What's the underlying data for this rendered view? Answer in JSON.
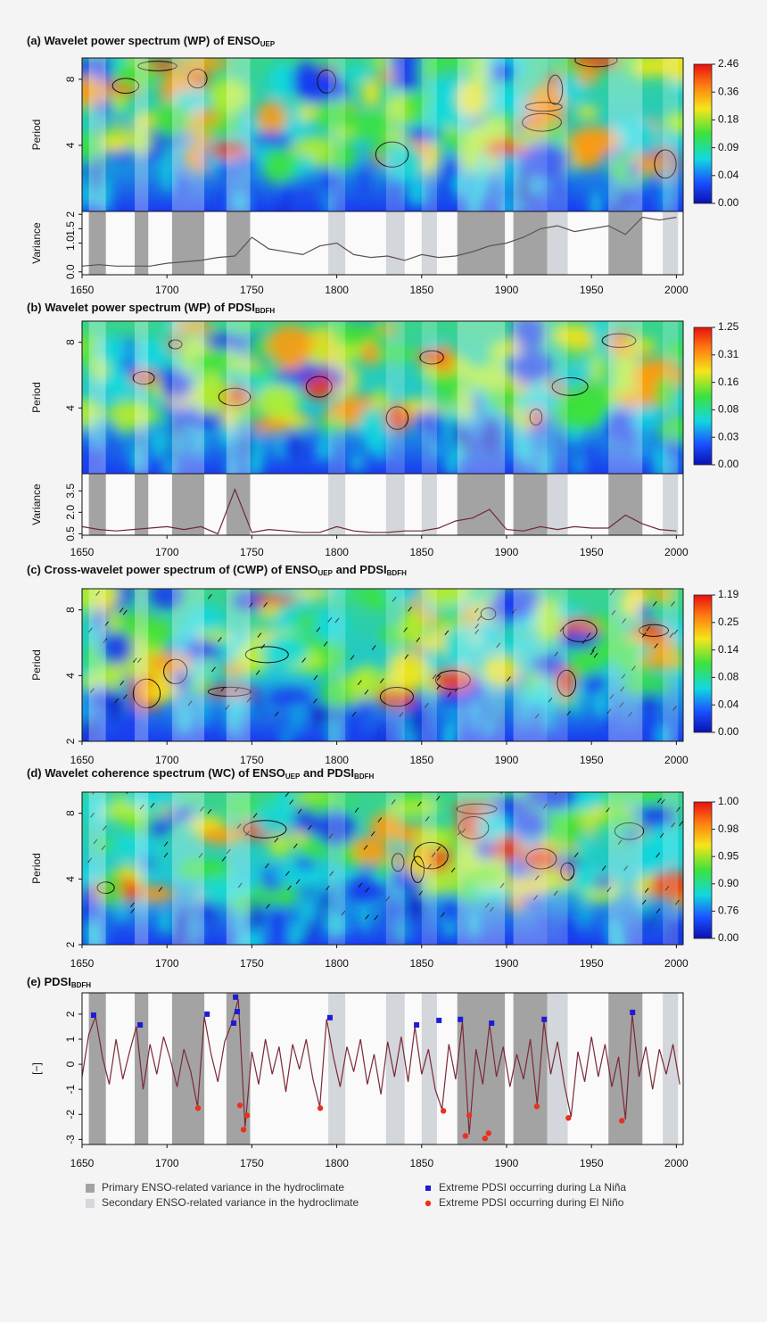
{
  "shading": {
    "primary": {
      "label": "Primary ENSO-related variance in the hydroclimate",
      "color": "#a3a3a3",
      "spans": [
        [
          1654,
          1664
        ],
        [
          1681,
          1689
        ],
        [
          1703,
          1722
        ],
        [
          1735,
          1749
        ],
        [
          1871,
          1899
        ],
        [
          1904,
          1924
        ],
        [
          1960,
          1980
        ]
      ]
    },
    "secondary": {
      "label": "Secondary ENSO-related variance in the hydroclimate",
      "color": "#d3d6da",
      "spans": [
        [
          1795,
          1805
        ],
        [
          1829,
          1840
        ],
        [
          1850,
          1859
        ],
        [
          1924,
          1936
        ],
        [
          1992,
          2001
        ]
      ]
    }
  },
  "chart_data": [
    {
      "type": "heatmap",
      "title": [
        {
          "text": "(a) Wavelet power spectrum (WP) of ENSO",
          "sub": false
        },
        {
          "text": "UEP",
          "sub": true
        }
      ],
      "ylabel": "Period",
      "log_scale": true,
      "xlim": [
        1650,
        2004
      ],
      "ylim": [
        2,
        10
      ],
      "yticks": [
        4,
        8
      ],
      "colorbar_ticks": [
        {
          "value": 2.46,
          "label": "2.46"
        },
        {
          "value": 0.36,
          "label": "0.36"
        },
        {
          "value": 0.18,
          "label": "0.18"
        },
        {
          "value": 0.09,
          "label": "0.09"
        },
        {
          "value": 0.04,
          "label": "0.04"
        },
        {
          "value": 0,
          "label": "0.00"
        }
      ]
    },
    {
      "type": "line",
      "ylabel": "Variance",
      "color": "#5d5050",
      "xlim": [
        1650,
        2004
      ],
      "ylim": [
        -0.1,
        2.1
      ],
      "yticks": [
        {
          "value": 0,
          "label": "0.0"
        },
        {
          "value": 1,
          "label": "1.0"
        },
        1.5,
        2
      ],
      "xticks": [
        1650,
        1700,
        1750,
        1800,
        1850,
        1900,
        1950,
        2000
      ],
      "x": [
        1650,
        1660,
        1670,
        1680,
        1690,
        1700,
        1710,
        1720,
        1730,
        1740,
        1750,
        1760,
        1770,
        1780,
        1790,
        1800,
        1810,
        1820,
        1830,
        1840,
        1850,
        1860,
        1870,
        1880,
        1890,
        1900,
        1910,
        1920,
        1930,
        1940,
        1950,
        1960,
        1970,
        1980,
        1990,
        2000
      ],
      "values": [
        0.2,
        0.25,
        0.2,
        0.2,
        0.2,
        0.3,
        0.35,
        0.4,
        0.5,
        0.55,
        1.2,
        0.8,
        0.7,
        0.6,
        0.9,
        1.0,
        0.6,
        0.5,
        0.55,
        0.4,
        0.6,
        0.5,
        0.55,
        0.7,
        0.9,
        1.0,
        1.2,
        1.5,
        1.6,
        1.4,
        1.5,
        1.6,
        1.3,
        1.9,
        1.8,
        1.9
      ]
    },
    {
      "type": "heatmap",
      "title": [
        {
          "text": "(b) Wavelet power spectrum (WP) of PDSI",
          "sub": false
        },
        {
          "text": "BDFH",
          "sub": true
        }
      ],
      "ylabel": "Period",
      "log_scale": true,
      "xlim": [
        1650,
        2004
      ],
      "ylim": [
        2,
        10
      ],
      "yticks": [
        4,
        8
      ],
      "colorbar_ticks": [
        {
          "value": 1.25,
          "label": "1.25"
        },
        {
          "value": 0.31,
          "label": "0.31"
        },
        {
          "value": 0.16,
          "label": "0.16"
        },
        {
          "value": 0.08,
          "label": "0.08"
        },
        {
          "value": 0.03,
          "label": "0.03"
        },
        {
          "value": 0,
          "label": "0.00"
        }
      ]
    },
    {
      "type": "line",
      "ylabel": "Variance",
      "color": "#6b2a38",
      "xlim": [
        1650,
        2004
      ],
      "ylim": [
        0.4,
        4.7
      ],
      "yticks": [
        0.5,
        {
          "value": 2,
          "label": "2.0"
        },
        3.5
      ],
      "xticks": [
        1650,
        1700,
        1750,
        1800,
        1850,
        1900,
        1950,
        2000
      ],
      "x": [
        1650,
        1660,
        1670,
        1680,
        1690,
        1700,
        1710,
        1720,
        1730,
        1740,
        1750,
        1760,
        1770,
        1780,
        1790,
        1800,
        1810,
        1820,
        1830,
        1840,
        1850,
        1860,
        1870,
        1880,
        1890,
        1900,
        1910,
        1920,
        1930,
        1940,
        1950,
        1960,
        1970,
        1980,
        1990,
        2000
      ],
      "values": [
        1.0,
        0.8,
        0.7,
        0.8,
        0.9,
        1.0,
        0.8,
        1.0,
        0.5,
        3.6,
        0.6,
        0.8,
        0.7,
        0.6,
        0.6,
        1.0,
        0.7,
        0.6,
        0.6,
        0.7,
        0.7,
        0.9,
        1.4,
        1.6,
        2.2,
        0.8,
        0.7,
        1.0,
        0.8,
        1.0,
        0.9,
        0.9,
        1.8,
        1.2,
        0.8,
        0.7
      ]
    },
    {
      "type": "heatmap",
      "title": [
        {
          "text": "(c) Cross-wavelet power spectrum of (CWP) of ENSO",
          "sub": false
        },
        {
          "text": "UEP",
          "sub": true
        },
        {
          "text": " and PDSI",
          "sub": false
        },
        {
          "text": "BDFH",
          "sub": true
        }
      ],
      "ylabel": "Period",
      "log_scale": true,
      "xlim": [
        1650,
        2004
      ],
      "ylim": [
        2,
        10
      ],
      "yticks": [
        2,
        4,
        8
      ],
      "xticks": [
        1650,
        1700,
        1750,
        1800,
        1850,
        1900,
        1950,
        2000
      ],
      "colorbar_ticks": [
        {
          "value": 1.19,
          "label": "1.19"
        },
        {
          "value": 0.25,
          "label": "0.25"
        },
        {
          "value": 0.14,
          "label": "0.14"
        },
        {
          "value": 0.08,
          "label": "0.08"
        },
        {
          "value": 0.04,
          "label": "0.04"
        },
        {
          "value": 0,
          "label": "0.00"
        }
      ]
    },
    {
      "type": "heatmap",
      "title": [
        {
          "text": "(d) Wavelet coherence spectrum (WC) of ENSO",
          "sub": false
        },
        {
          "text": "UEP",
          "sub": true
        },
        {
          "text": " and PDSI",
          "sub": false
        },
        {
          "text": "BDFH",
          "sub": true
        }
      ],
      "ylabel": "Period",
      "log_scale": true,
      "xlim": [
        1650,
        2004
      ],
      "ylim": [
        2,
        10
      ],
      "yticks": [
        2,
        4,
        8
      ],
      "xticks": [
        1650,
        1700,
        1750,
        1800,
        1850,
        1900,
        1950,
        2000
      ],
      "colorbar_ticks": [
        {
          "value": 1,
          "label": "1.00"
        },
        {
          "value": 0.98,
          "label": "0.98"
        },
        {
          "value": 0.95,
          "label": "0.95"
        },
        {
          "value": 0.9,
          "label": "0.90"
        },
        {
          "value": 0.76,
          "label": "0.76"
        },
        {
          "value": 0,
          "label": "0.00"
        }
      ]
    },
    {
      "type": "line",
      "title": [
        {
          "text": "(e) PDSI",
          "sub": false
        },
        {
          "text": "BDFH",
          "sub": true
        }
      ],
      "ylabel": "[−]",
      "color": "#7a2a38",
      "xlim": [
        1650,
        2004
      ],
      "ylim": [
        -3.2,
        2.85
      ],
      "yticks": [
        -3,
        -2,
        -1,
        0,
        1,
        2
      ],
      "xticks": [
        1650,
        1700,
        1750,
        1800,
        1850,
        1900,
        1950,
        2000
      ],
      "x": [
        1650,
        1654,
        1658,
        1662,
        1666,
        1670,
        1674,
        1678,
        1682,
        1686,
        1690,
        1694,
        1698,
        1702,
        1706,
        1710,
        1714,
        1718,
        1722,
        1726,
        1730,
        1734,
        1738,
        1742,
        1746,
        1750,
        1754,
        1758,
        1762,
        1766,
        1770,
        1774,
        1778,
        1782,
        1786,
        1790,
        1794,
        1798,
        1802,
        1806,
        1810,
        1814,
        1818,
        1822,
        1826,
        1830,
        1834,
        1838,
        1842,
        1846,
        1850,
        1854,
        1858,
        1862,
        1866,
        1870,
        1874,
        1878,
        1882,
        1886,
        1890,
        1894,
        1898,
        1902,
        1906,
        1910,
        1914,
        1918,
        1922,
        1926,
        1930,
        1934,
        1938,
        1942,
        1946,
        1950,
        1954,
        1958,
        1962,
        1966,
        1970,
        1974,
        1978,
        1982,
        1986,
        1990,
        1994,
        1998,
        2002
      ],
      "values": [
        -0.5,
        1.2,
        1.9,
        0.3,
        -0.8,
        1.0,
        -0.6,
        0.5,
        1.5,
        -1.0,
        0.8,
        -0.4,
        1.1,
        0.2,
        -0.9,
        0.6,
        -0.3,
        -1.7,
        1.9,
        0.4,
        -0.7,
        0.9,
        1.6,
        2.6,
        -2.5,
        0.5,
        -0.8,
        1.0,
        -0.4,
        0.7,
        -1.1,
        0.8,
        -0.2,
        1.0,
        -0.6,
        -1.7,
        1.8,
        0.3,
        -0.9,
        0.7,
        -0.3,
        1.0,
        -0.8,
        0.4,
        -1.2,
        0.9,
        -0.5,
        1.1,
        -0.7,
        1.5,
        -0.4,
        0.6,
        -1.0,
        -1.8,
        0.8,
        -0.6,
        1.7,
        -2.8,
        0.6,
        -0.8,
        1.6,
        -0.5,
        0.7,
        -0.9,
        0.4,
        -0.6,
        1.0,
        -1.6,
        1.7,
        -0.4,
        0.9,
        -0.8,
        -2.1,
        0.5,
        -0.7,
        1.1,
        -0.5,
        0.8,
        -0.9,
        0.3,
        -2.2,
        2.0,
        -0.5,
        0.7,
        -1.0,
        0.6,
        -0.4,
        0.8,
        -0.8
      ],
      "points": [
        {
          "name": "Extreme PDSI occurring during La Niña",
          "color": "#1c1cd6",
          "marker": "square",
          "x": [
            1656.8,
            1684.2,
            1723.6,
            1740.4,
            1741.4,
            1739.3,
            1796,
            1847,
            1860.2,
            1872.8,
            1891.2,
            1922.2,
            1974.2
          ],
          "values": [
            1.96,
            1.57,
            2.0,
            2.68,
            2.1,
            1.64,
            1.86,
            1.57,
            1.75,
            1.79,
            1.64,
            1.79,
            2.07
          ]
        },
        {
          "name": "Extreme PDSI occurring during El Niño",
          "color": "#e8321e",
          "marker": "circle",
          "x": [
            1718.3,
            1743,
            1747.2,
            1745.1,
            1790.3,
            1862.8,
            1878,
            1875.8,
            1889.4,
            1887.3,
            1917.8,
            1936.4,
            1967.9
          ],
          "values": [
            -1.75,
            -1.64,
            -2.04,
            -2.61,
            -1.75,
            -1.86,
            -2.04,
            -2.86,
            -2.75,
            -2.96,
            -1.68,
            -2.14,
            -2.25
          ]
        }
      ]
    }
  ]
}
